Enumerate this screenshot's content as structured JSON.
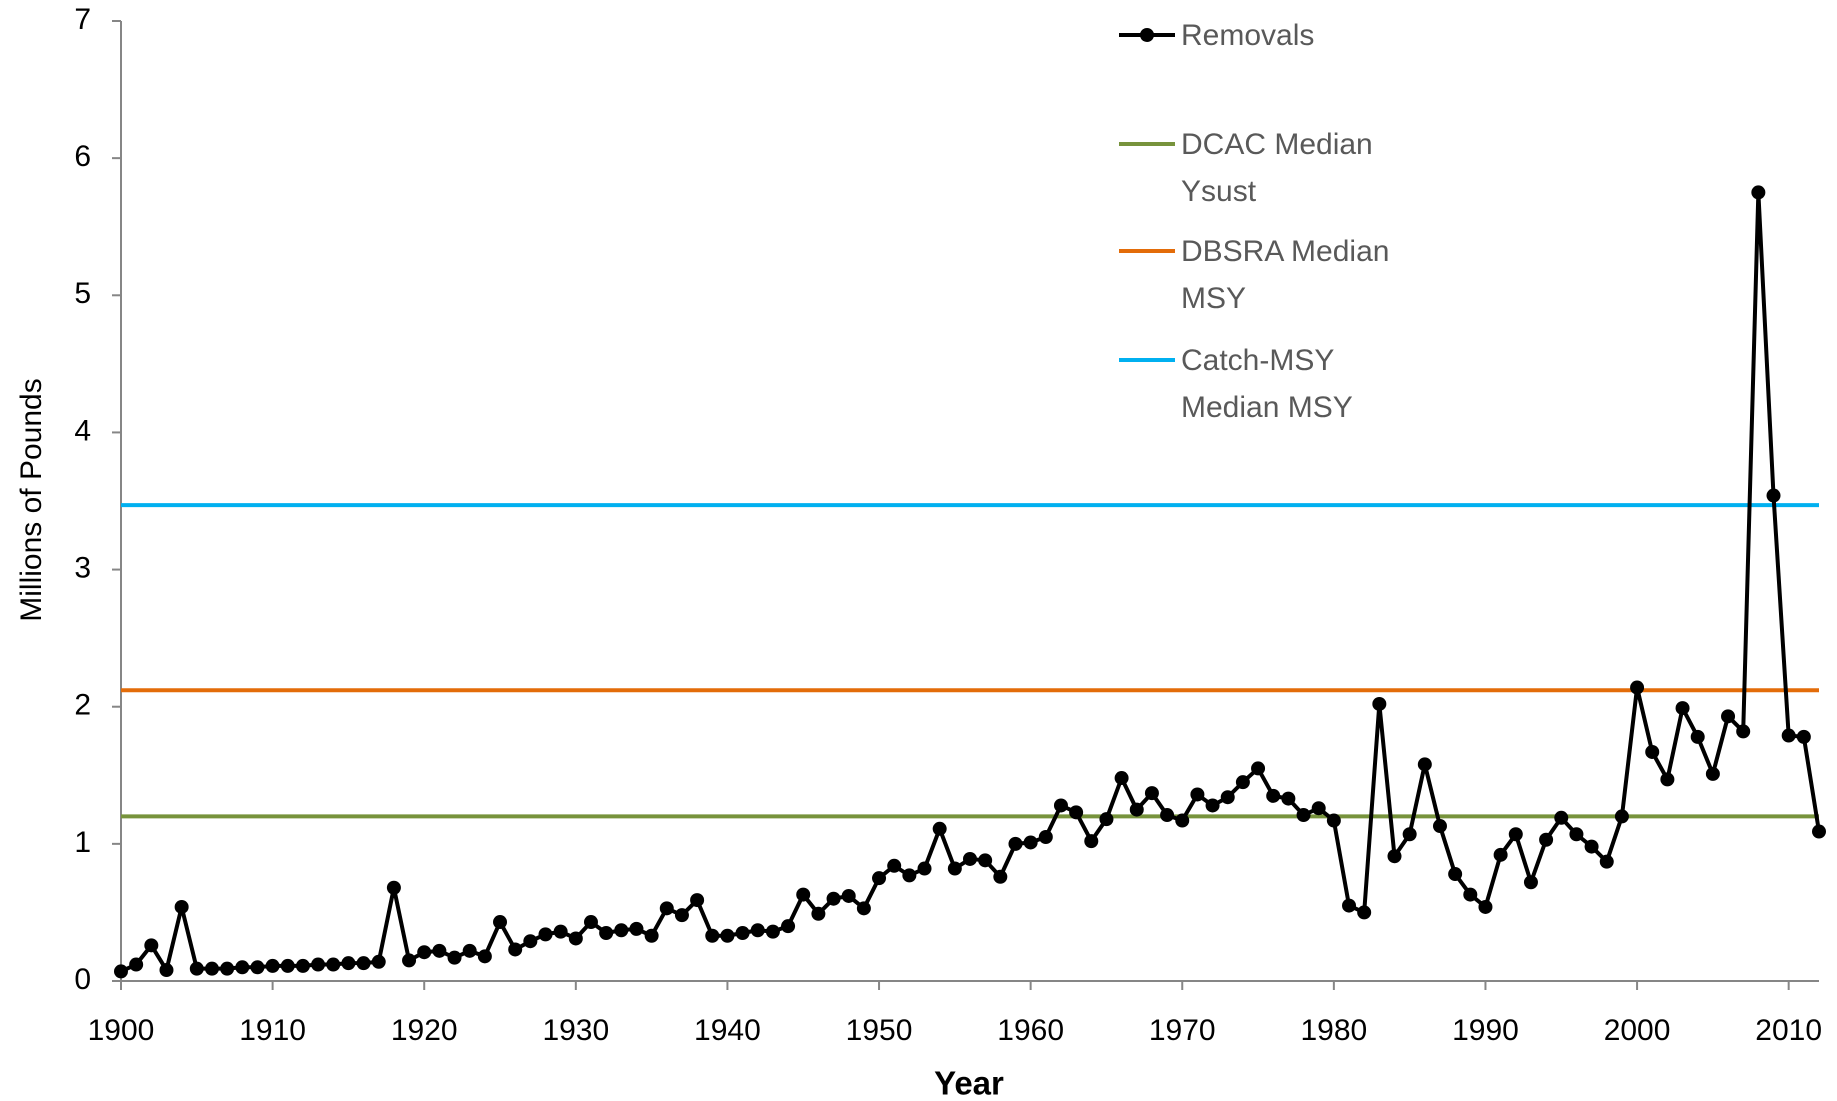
{
  "chart_data": {
    "type": "line",
    "x_label": "Year",
    "y_label": "Millions of Pounds",
    "xlim": [
      1900,
      2012
    ],
    "xticks": [
      1900,
      1910,
      1920,
      1930,
      1940,
      1950,
      1960,
      1970,
      1980,
      1990,
      2000,
      2010
    ],
    "ylim": [
      0,
      7
    ],
    "yticks": [
      0,
      1,
      2,
      3,
      4,
      5,
      6,
      7
    ],
    "x": [
      1900,
      1901,
      1902,
      1903,
      1904,
      1905,
      1906,
      1907,
      1908,
      1909,
      1910,
      1911,
      1912,
      1913,
      1914,
      1915,
      1916,
      1917,
      1918,
      1919,
      1920,
      1921,
      1922,
      1923,
      1924,
      1925,
      1926,
      1927,
      1928,
      1929,
      1930,
      1931,
      1932,
      1933,
      1934,
      1935,
      1936,
      1937,
      1938,
      1939,
      1940,
      1941,
      1942,
      1943,
      1944,
      1945,
      1946,
      1947,
      1948,
      1949,
      1950,
      1951,
      1952,
      1953,
      1954,
      1955,
      1956,
      1957,
      1958,
      1959,
      1960,
      1961,
      1962,
      1963,
      1964,
      1965,
      1966,
      1967,
      1968,
      1969,
      1970,
      1971,
      1972,
      1973,
      1974,
      1975,
      1976,
      1977,
      1978,
      1979,
      1980,
      1981,
      1982,
      1983,
      1984,
      1985,
      1986,
      1987,
      1988,
      1989,
      1990,
      1991,
      1992,
      1993,
      1994,
      1995,
      1996,
      1997,
      1998,
      1999,
      2000,
      2001,
      2002,
      2003,
      2004,
      2005,
      2006,
      2007,
      2008,
      2009,
      2010,
      2011,
      2012
    ],
    "series": [
      {
        "name": "Removals",
        "color": "#000000",
        "values": [
          0.07,
          0.12,
          0.26,
          0.08,
          0.54,
          0.09,
          0.09,
          0.09,
          0.1,
          0.1,
          0.11,
          0.11,
          0.11,
          0.12,
          0.12,
          0.13,
          0.13,
          0.14,
          0.68,
          0.15,
          0.21,
          0.22,
          0.17,
          0.22,
          0.18,
          0.43,
          0.23,
          0.29,
          0.34,
          0.36,
          0.31,
          0.43,
          0.35,
          0.37,
          0.38,
          0.33,
          0.53,
          0.48,
          0.59,
          0.33,
          0.33,
          0.35,
          0.37,
          0.36,
          0.4,
          0.63,
          0.49,
          0.6,
          0.62,
          0.53,
          0.75,
          0.84,
          0.77,
          0.82,
          1.11,
          0.82,
          0.89,
          0.88,
          0.76,
          1.0,
          1.01,
          1.05,
          1.28,
          1.23,
          1.02,
          1.18,
          1.48,
          1.25,
          1.37,
          1.21,
          1.17,
          1.36,
          1.28,
          1.34,
          1.45,
          1.55,
          1.35,
          1.33,
          1.21,
          1.26,
          1.17,
          0.55,
          0.5,
          2.02,
          0.91,
          1.07,
          1.58,
          1.13,
          0.78,
          0.63,
          0.54,
          0.92,
          1.07,
          0.72,
          1.03,
          1.19,
          1.07,
          0.98,
          0.87,
          1.2,
          2.14,
          1.67,
          1.47,
          1.99,
          1.78,
          1.51,
          1.93,
          1.82,
          5.75,
          3.54,
          1.79,
          1.78,
          1.09
        ]
      }
    ],
    "hlines": [
      {
        "name": "DCAC Median Ysust",
        "color": "#77933c",
        "value": 1.2
      },
      {
        "name": "DBSRA Median MSY",
        "color": "#e36c09",
        "value": 2.12
      },
      {
        "name": "Catch-MSY Median MSY",
        "color": "#00b0f0",
        "value": 3.47
      }
    ]
  }
}
